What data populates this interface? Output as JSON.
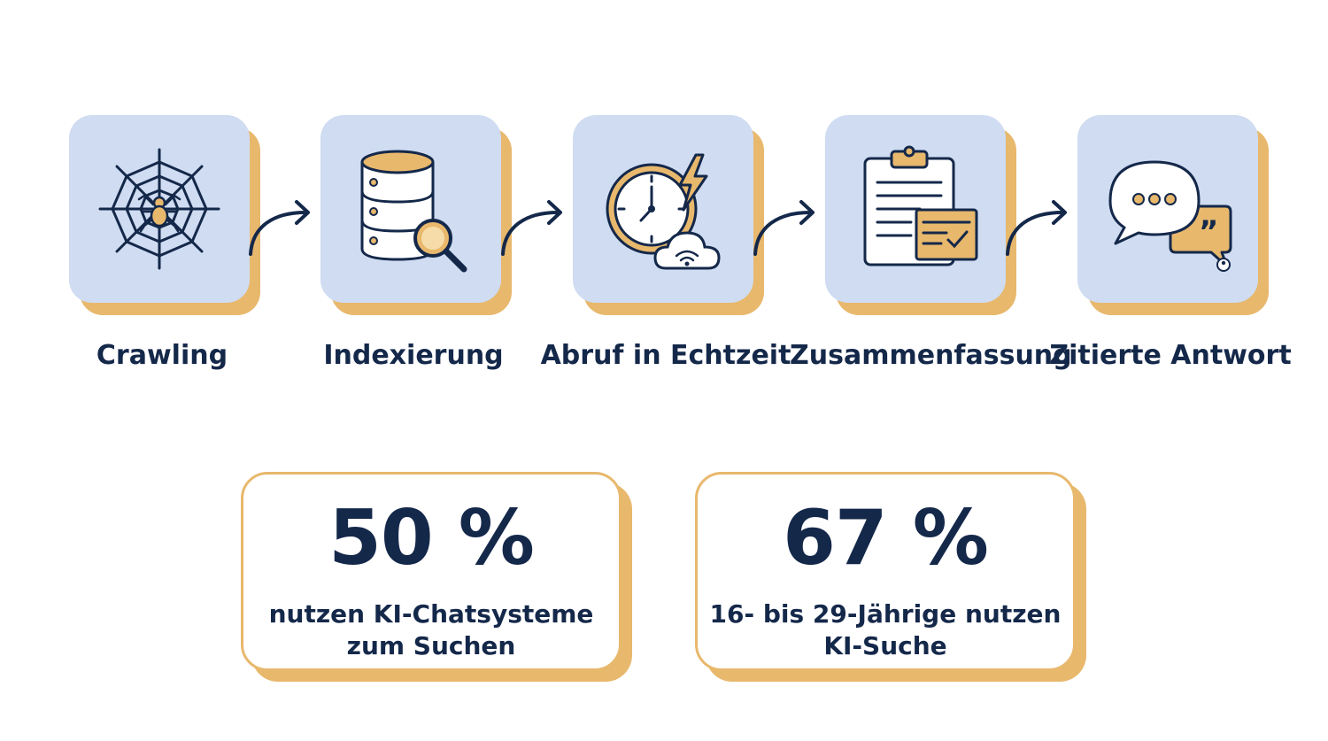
{
  "process": {
    "steps": [
      {
        "label": "Crawling",
        "icon": "spider-web-icon"
      },
      {
        "label": "Indexierung",
        "icon": "database-search-icon"
      },
      {
        "label": "Abruf in Echtzeit",
        "icon": "clock-lightning-cloud-icon"
      },
      {
        "label": "Zusammenfassung",
        "icon": "clipboard-document-icon"
      },
      {
        "label": "Zitierte Antwort",
        "icon": "chat-quote-icon"
      }
    ]
  },
  "stats": [
    {
      "value": "50 %",
      "text": "nutzen KI-Chatsysteme zum Suchen"
    },
    {
      "value": "67 %",
      "text": "16- bis 29-Jährige nutzen KI-Suche"
    }
  ],
  "colors": {
    "navy": "#14284a",
    "tile_blue": "#cfdcf1",
    "accent_gold": "#e8b86d"
  }
}
